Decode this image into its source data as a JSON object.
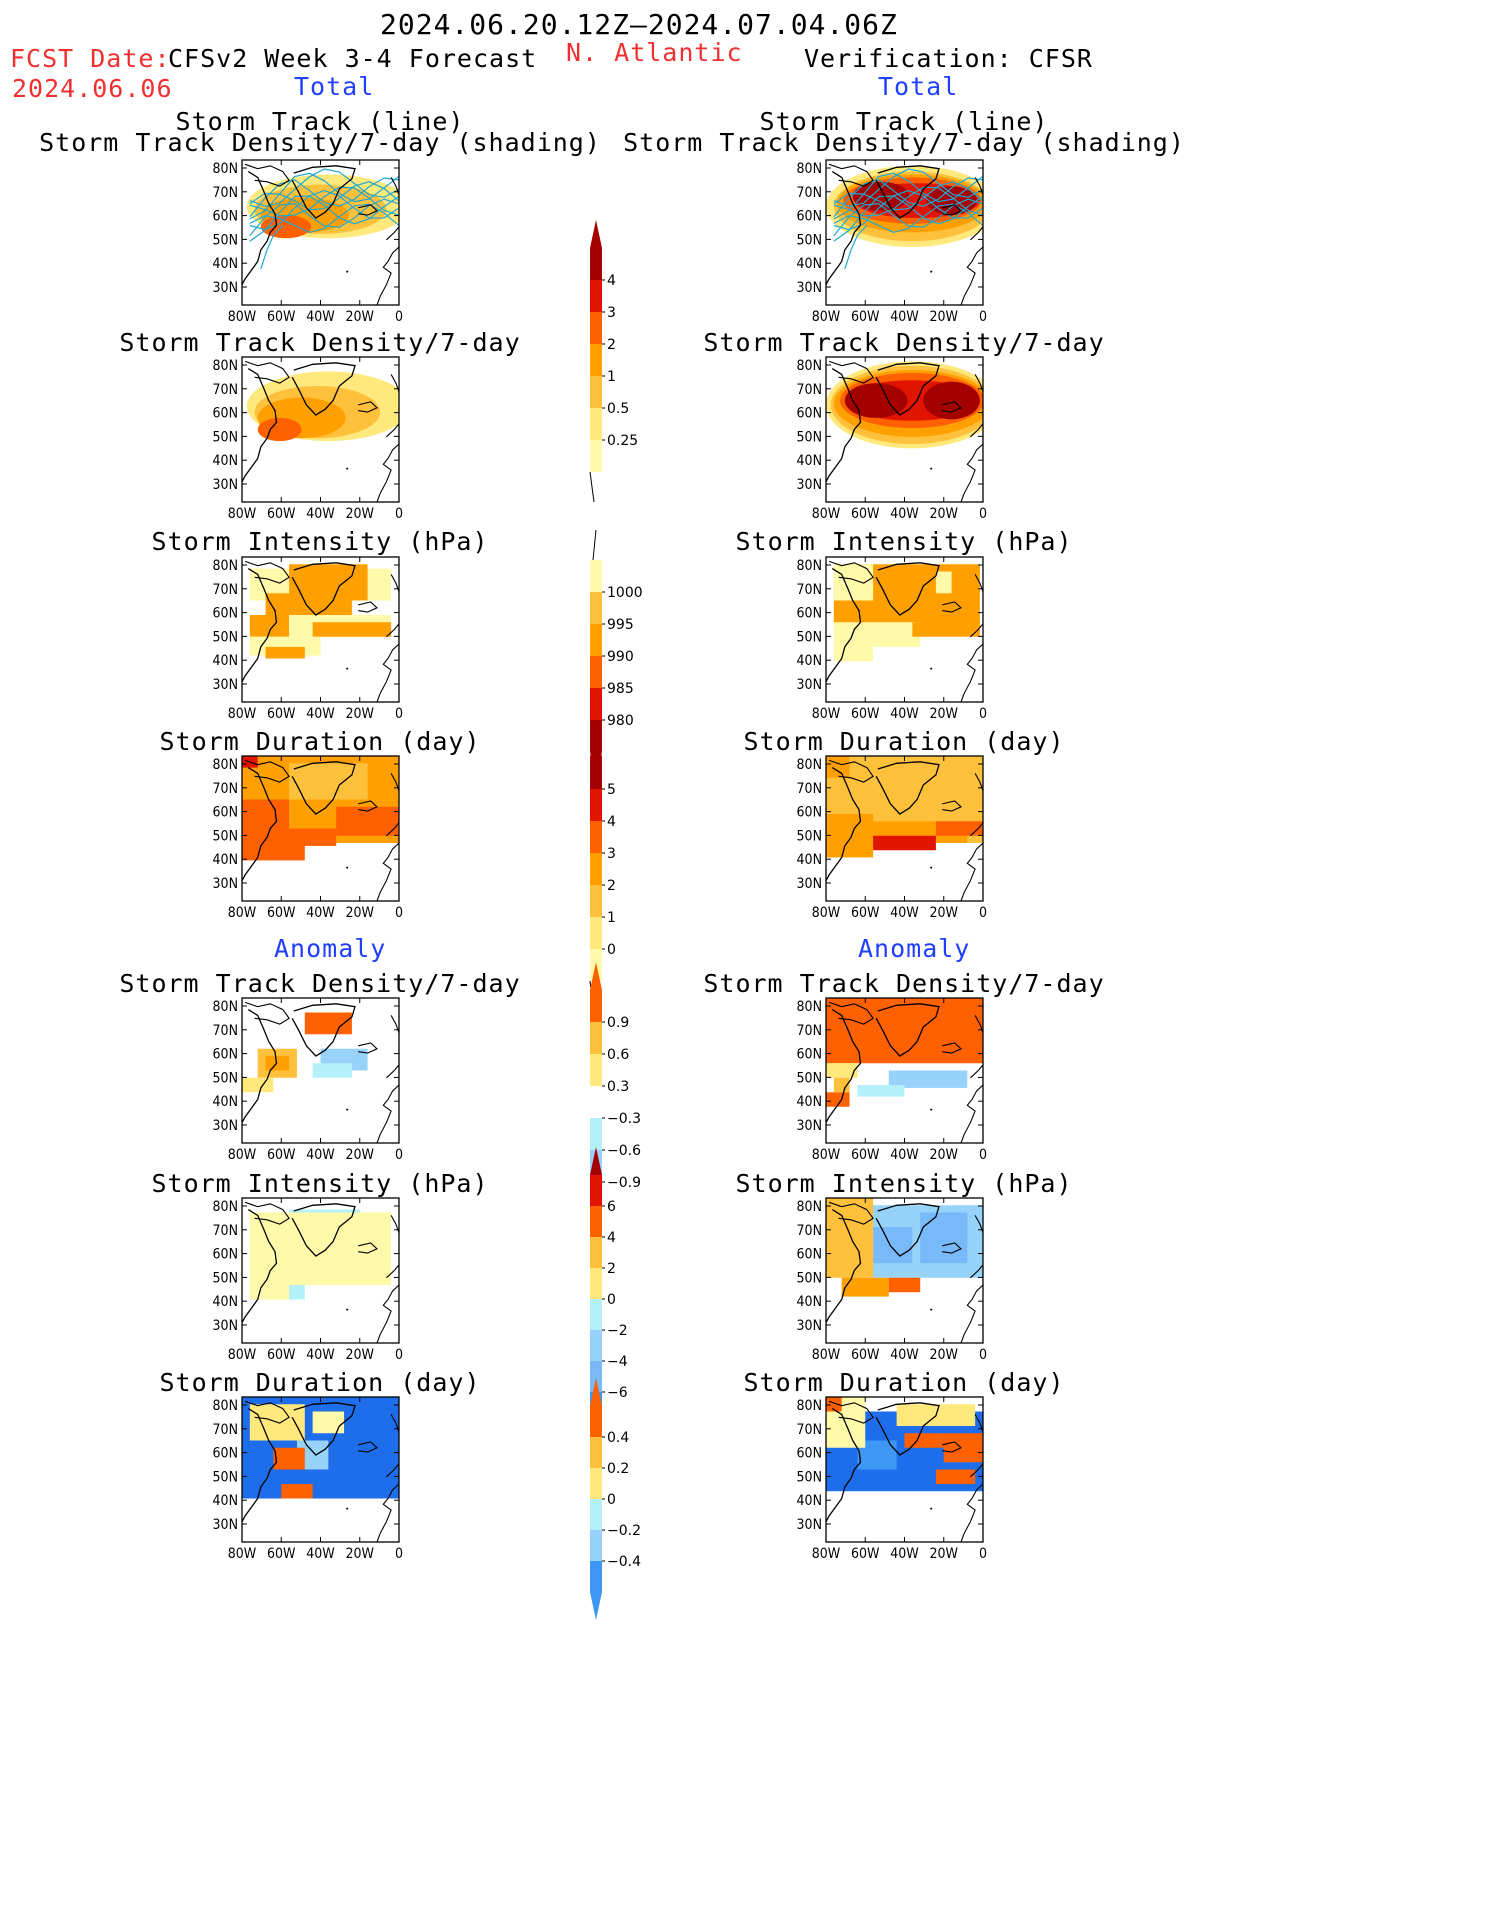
{
  "header": {
    "period": "2024.06.20.12Z–2024.07.04.06Z",
    "fcst_label": "FCST Date:",
    "fcst_date": "2024.06.06",
    "model": "CFSv2 Week 3-4 Forecast",
    "region": "N. Atlantic",
    "verification": "Verification: CFSR",
    "total_left": "Total",
    "total_right": "Total",
    "anomaly_left": "Anomaly",
    "anomaly_right": "Anomaly"
  },
  "panel_titles": {
    "track1": "Storm Track (line)",
    "track2": "Storm Track Density/7-day (shading)",
    "density": "Storm Track Density/7-day",
    "intensity": "Storm Intensity (hPa)",
    "duration": "Storm Duration (day)"
  },
  "axes": {
    "lat_ticks": [
      "80N",
      "70N",
      "60N",
      "50N",
      "40N",
      "30N"
    ],
    "lon_ticks": [
      "80W",
      "60W",
      "40W",
      "20W",
      "0"
    ]
  },
  "colorbars": {
    "density_total": [
      "4",
      "3",
      "2",
      "1",
      "0.5",
      "0.25"
    ],
    "intensity_total": [
      "1000",
      "995",
      "990",
      "985",
      "980"
    ],
    "duration_total": [
      "5",
      "4",
      "3",
      "2",
      "1",
      "0"
    ],
    "density_anom": [
      "0.9",
      "0.6",
      "0.3",
      "−0.3",
      "−0.6",
      "−0.9"
    ],
    "intensity_anom": [
      "6",
      "4",
      "2",
      "0",
      "−2",
      "−4",
      "−6"
    ],
    "duration_anom": [
      "0.4",
      "0.2",
      "0",
      "−0.2",
      "−0.4"
    ]
  },
  "colors": {
    "warm": [
      "#fffaaa",
      "#ffe87c",
      "#ffc03c",
      "#ffa000",
      "#ff6000",
      "#e11400",
      "#a50000"
    ],
    "cool": [
      "#b4f0fa",
      "#96d2fa",
      "#78b9fa",
      "#3c97f5",
      "#1e6eeb"
    ],
    "track": "#20a8d0"
  }
}
